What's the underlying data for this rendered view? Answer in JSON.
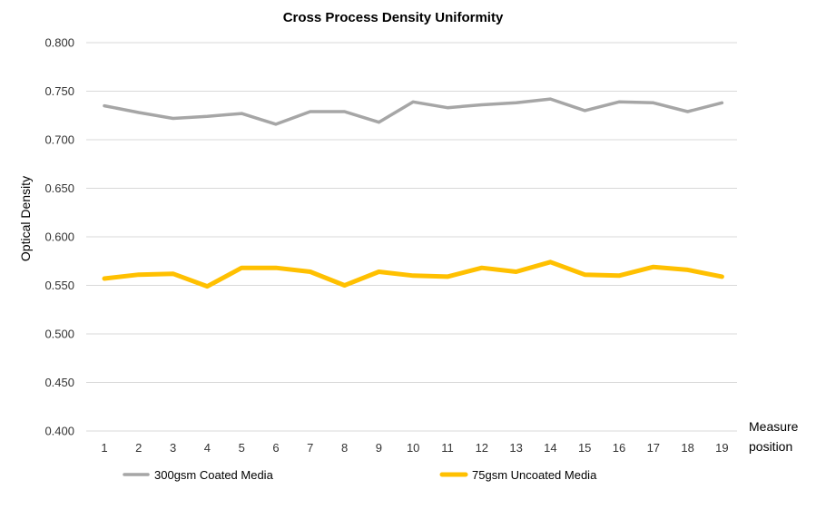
{
  "chart_data": {
    "type": "line",
    "title": "Cross Process Density Uniformity",
    "ylabel": "Optical Density",
    "xlabel": [
      "Measure",
      "position"
    ],
    "ylim": [
      0.4,
      0.8
    ],
    "yticks": [
      "0.400",
      "0.450",
      "0.500",
      "0.550",
      "0.600",
      "0.650",
      "0.700",
      "0.750",
      "0.800"
    ],
    "x": [
      "1",
      "2",
      "3",
      "4",
      "5",
      "6",
      "7",
      "8",
      "9",
      "10",
      "11",
      "12",
      "13",
      "14",
      "15",
      "16",
      "17",
      "18",
      "19"
    ],
    "grid": "horizontal",
    "legend": "bottom",
    "series": [
      {
        "name": "300gsm Coated Media",
        "color": "#a6a6a6",
        "values": [
          0.735,
          0.728,
          0.722,
          0.724,
          0.727,
          0.716,
          0.729,
          0.729,
          0.718,
          0.739,
          0.733,
          0.736,
          0.738,
          0.742,
          0.73,
          0.739,
          0.738,
          0.729,
          0.738
        ]
      },
      {
        "name": "75gsm Uncoated Media",
        "color": "#ffc000",
        "values": [
          0.557,
          0.561,
          0.562,
          0.549,
          0.568,
          0.568,
          0.564,
          0.55,
          0.564,
          0.56,
          0.559,
          0.568,
          0.564,
          0.574,
          0.561,
          0.56,
          0.569,
          0.566,
          0.559
        ]
      }
    ]
  }
}
